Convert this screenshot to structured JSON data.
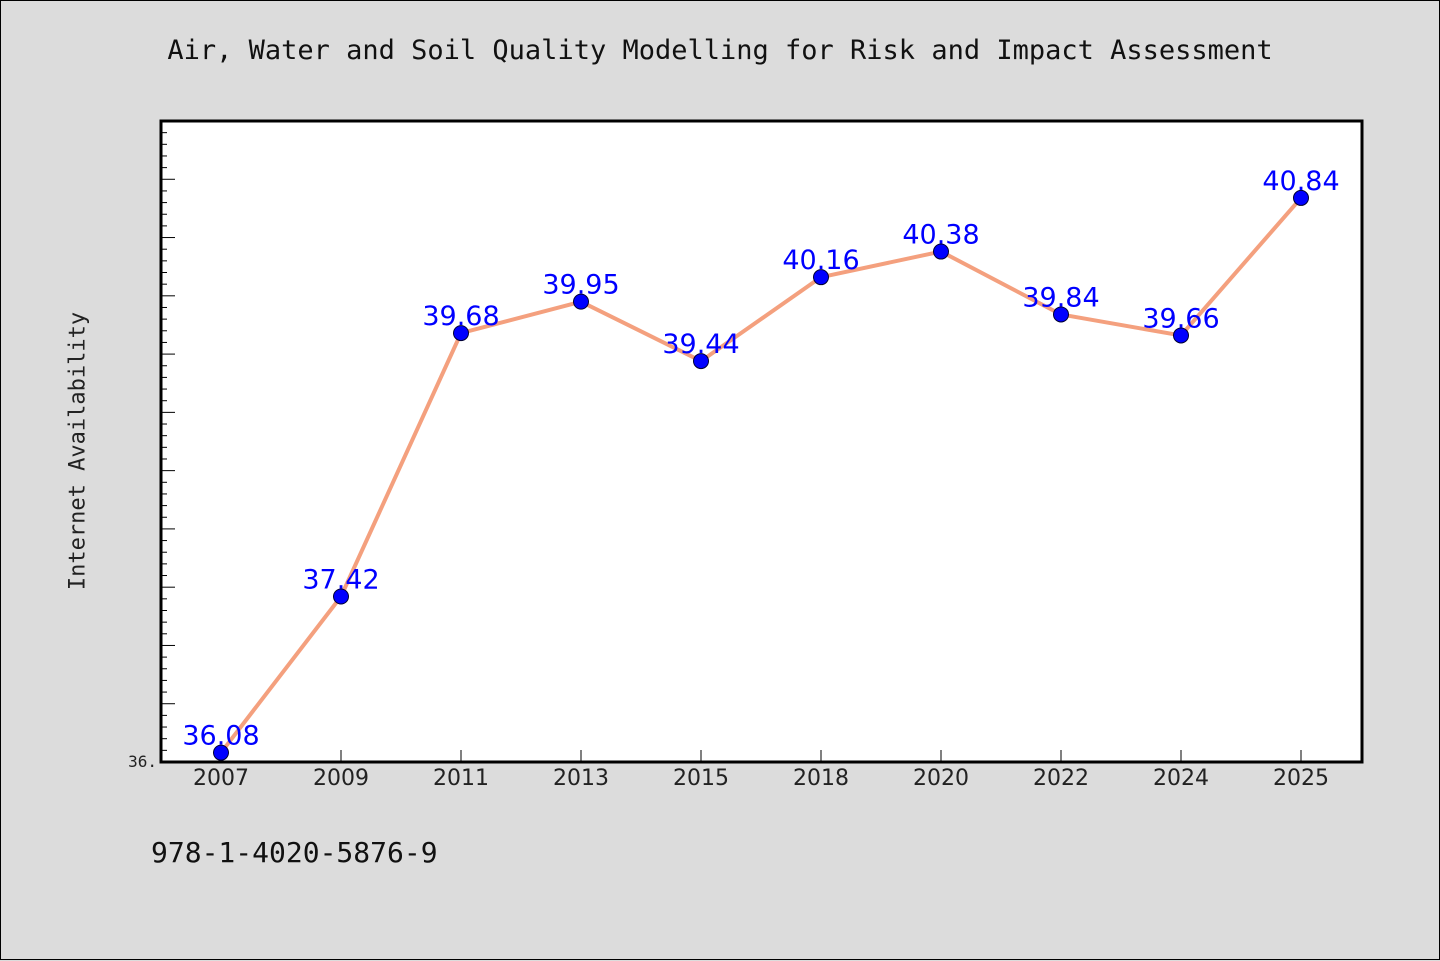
{
  "chart_data": {
    "type": "line",
    "title": "Air, Water and Soil Quality Modelling for Risk and Impact Assessment",
    "ylabel": "Internet Availability",
    "xlabel": "",
    "categories": [
      "2007",
      "2009",
      "2011",
      "2013",
      "2015",
      "2018",
      "2020",
      "2022",
      "2024",
      "2025"
    ],
    "values": [
      36.08,
      37.42,
      39.68,
      39.95,
      39.44,
      40.16,
      40.38,
      39.84,
      39.66,
      40.84
    ],
    "data_labels": [
      "36.08",
      "37.42",
      "39.68",
      "39.95",
      "39.44",
      "40.16",
      "40.38",
      "39.84",
      "39.66",
      "40.84"
    ],
    "ylim": [
      36.0,
      41.5
    ],
    "y_tick_label": "36.",
    "grid": false,
    "line_color": "#f4a07e",
    "marker_color": "#0000ff",
    "label_color": "#0000ff"
  },
  "footer": {
    "isbn": "978-1-4020-5876-9"
  },
  "colors": {
    "background": "#dcdcdc",
    "plot_background": "#ffffff"
  }
}
